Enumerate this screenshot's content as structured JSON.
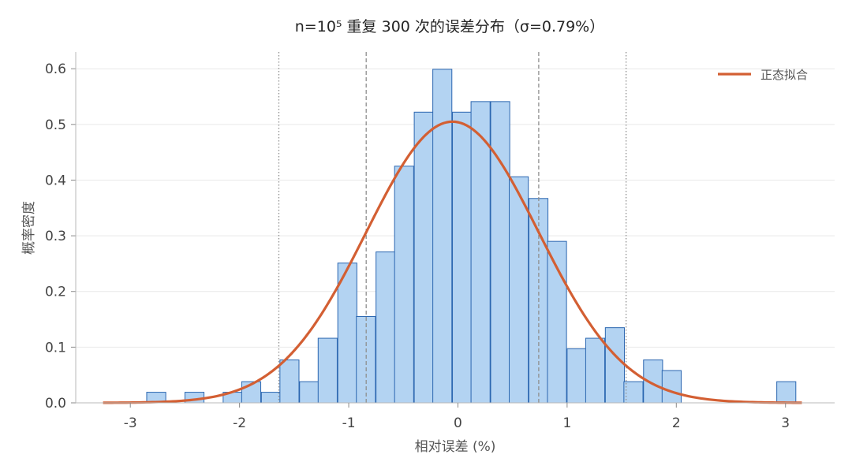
{
  "chart_data": {
    "type": "bar",
    "title": "n=10⁵ 重复 300 次的误差分布（σ=0.79%）",
    "xlabel": "相对误差 (%)",
    "ylabel": "概率密度",
    "xlim": [
      -3.5,
      3.45
    ],
    "ylim": [
      0,
      0.63
    ],
    "xticks": [
      -3,
      -2,
      -1,
      0,
      1,
      2,
      3
    ],
    "yticks": [
      0.0,
      0.1,
      0.2,
      0.3,
      0.4,
      0.5,
      0.6
    ],
    "bin_width": 0.1745,
    "bins": [
      {
        "x0": -2.85,
        "density": 0.019
      },
      {
        "x0": -2.5,
        "density": 0.019
      },
      {
        "x0": -2.15,
        "density": 0.019
      },
      {
        "x0": -1.98,
        "density": 0.038
      },
      {
        "x0": -1.8,
        "density": 0.019
      },
      {
        "x0": -1.63,
        "density": 0.077
      },
      {
        "x0": -1.45,
        "density": 0.038
      },
      {
        "x0": -1.28,
        "density": 0.116
      },
      {
        "x0": -1.1,
        "density": 0.251
      },
      {
        "x0": -0.93,
        "density": 0.155
      },
      {
        "x0": -0.75,
        "density": 0.271
      },
      {
        "x0": -0.58,
        "density": 0.425
      },
      {
        "x0": -0.4,
        "density": 0.522
      },
      {
        "x0": -0.23,
        "density": 0.599
      },
      {
        "x0": -0.05,
        "density": 0.522
      },
      {
        "x0": 0.12,
        "density": 0.541
      },
      {
        "x0": 0.3,
        "density": 0.541
      },
      {
        "x0": 0.47,
        "density": 0.406
      },
      {
        "x0": 0.65,
        "density": 0.367
      },
      {
        "x0": 0.82,
        "density": 0.29
      },
      {
        "x0": 1.0,
        "density": 0.097
      },
      {
        "x0": 1.17,
        "density": 0.116
      },
      {
        "x0": 1.35,
        "density": 0.135
      },
      {
        "x0": 1.52,
        "density": 0.038
      },
      {
        "x0": 1.7,
        "density": 0.077
      },
      {
        "x0": 1.87,
        "density": 0.058
      },
      {
        "x0": 2.92,
        "density": 0.038
      }
    ],
    "fit": {
      "name": "正态拟合",
      "mean": -0.05,
      "sigma": 0.79,
      "x_range": [
        -3.25,
        3.15
      ]
    },
    "reference_lines": [
      {
        "x": -1.64,
        "style": "dotted"
      },
      {
        "x": -0.84,
        "style": "dashed"
      },
      {
        "x": 0.74,
        "style": "dashed"
      },
      {
        "x": 1.54,
        "style": "dotted"
      }
    ],
    "grid": "horizontal",
    "legend_position": "top-right",
    "colors": {
      "bar_fill": "#b3d3f2",
      "bar_edge": "#2b66b0",
      "fit_line": "#d35f33",
      "reference_line": "#8f8f8f"
    }
  }
}
